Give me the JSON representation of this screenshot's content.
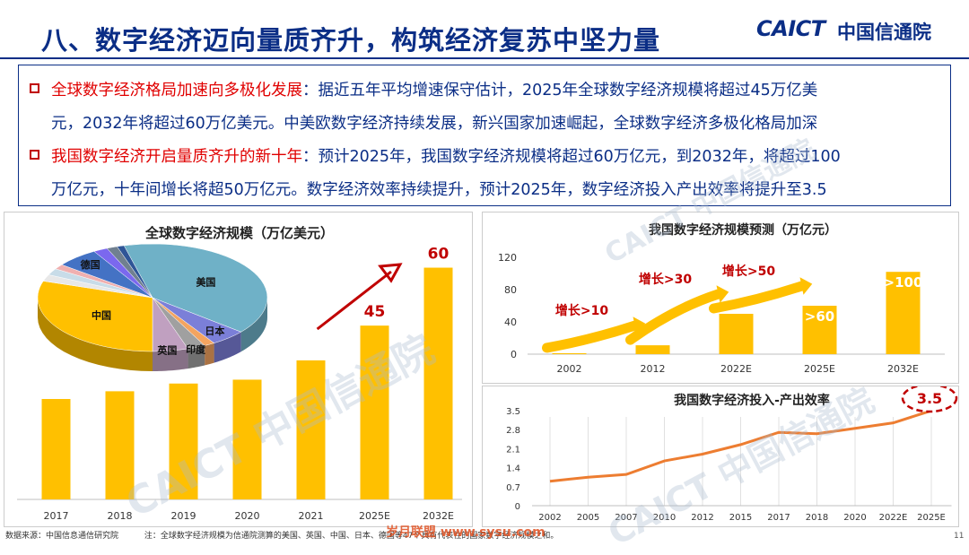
{
  "header": {
    "title": "八、数字经济迈向量质齐升，构筑经济复苏中坚力量",
    "logo_latin": "CAICT",
    "logo_cn": "中国信通院"
  },
  "bullets": [
    {
      "highlight": "全球数字经济格局加速向多极化发展",
      "line1_rest": "：据近五年平均增速保守估计，2025年全球数字经济规模将超过45万亿美",
      "line2": "元，2032年将超过60万亿美元。中美欧数字经济持续发展，新兴国家加速崛起，全球数字经济多极化格局加深"
    },
    {
      "highlight": "我国数字经济开启量质齐升的新十年",
      "line1_rest": "：预计2025年，我国数字经济规模将超过60万亿元，到2032年，将超过100",
      "line2": "万亿元，十年间增长将超50万亿元。数字经济效率持续提升，预计2025年，数字经济投入产出效率将提升至3.5"
    }
  ],
  "footer": {
    "source": "数据来源：中国信息通信研究院",
    "note": "注：全球数字经济规模为信通院测算的美国、英国、中国、日本、德国等47个具有代表性的国家数字经济规模之和。",
    "watermark_text": "岁月联盟 www.sysu.com"
  },
  "watermark": "CAICT 中国信通院",
  "page_number": "11",
  "colors": {
    "navy": "#0b2e86",
    "red": "#e00000",
    "bar": "#ffc000",
    "line": "#ed7d31",
    "callout_red": "#c00000"
  },
  "chart_data": [
    {
      "id": "global",
      "type": "bar",
      "title": "全球数字经济规模（万亿美元）",
      "categories": [
        "2017",
        "2018",
        "2019",
        "2020",
        "2021",
        "2025E",
        "2032E"
      ],
      "values": [
        26,
        28,
        30,
        31,
        36,
        45,
        60
      ],
      "data_labels": [
        null,
        null,
        null,
        null,
        null,
        "45",
        "60"
      ],
      "ylim": [
        0,
        65
      ],
      "grid": false,
      "annotation": "trend arrow from 2021 to 2025E",
      "inset_pie": {
        "type": "pie",
        "slices": [
          {
            "label": "美国",
            "value": 40,
            "color": "#6fb1c7"
          },
          {
            "label": "日本",
            "value": 5,
            "color": "#7b7fd8"
          },
          {
            "label": "",
            "value": 1.5,
            "color": "#f4a460"
          },
          {
            "label": "印度",
            "value": 2.5,
            "color": "#a0a0a0"
          },
          {
            "label": "英国",
            "value": 5,
            "color": "#c0a0c0"
          },
          {
            "label": "中国",
            "value": 30,
            "color": "#ffc000"
          },
          {
            "label": "",
            "value": 2,
            "color": "#e8e8e8"
          },
          {
            "label": "",
            "value": 2,
            "color": "#c8dce8"
          },
          {
            "label": "",
            "value": 1.5,
            "color": "#f0b0b0"
          },
          {
            "label": "德国",
            "value": 6,
            "color": "#4472c4"
          },
          {
            "label": "",
            "value": 2,
            "color": "#7b68ee"
          },
          {
            "label": "",
            "value": 1.5,
            "color": "#708090"
          },
          {
            "label": "",
            "value": 1,
            "color": "#2f5597"
          }
        ]
      }
    },
    {
      "id": "china-scale",
      "type": "bar",
      "title": "我国数字经济规模预测（万亿元）",
      "categories": [
        "2002",
        "2012",
        "2022E",
        "2025E",
        "2032E"
      ],
      "values": [
        1.2,
        11,
        50,
        60,
        102
      ],
      "data_labels": [
        null,
        null,
        null,
        ">60",
        ">100"
      ],
      "yticks": [
        0,
        40,
        80,
        120
      ],
      "ylim": [
        0,
        120
      ],
      "grid": false,
      "annotations": [
        "增长>10",
        "增长>30",
        "增长>50"
      ]
    },
    {
      "id": "china-efficiency",
      "type": "line",
      "title": "我国数字经济投入-产出效率",
      "x": [
        "2002",
        "2005",
        "2007",
        "2010",
        "2012",
        "2015",
        "2017",
        "2018",
        "2020",
        "2022E",
        "2025E"
      ],
      "values": [
        0.9,
        1.05,
        1.15,
        1.65,
        1.9,
        2.25,
        2.7,
        2.65,
        2.85,
        3.05,
        3.5
      ],
      "yticks": [
        0,
        0.7,
        1.4,
        2.1,
        2.8,
        3.5
      ],
      "ylim": [
        0,
        3.6
      ],
      "grid": "vertical",
      "callout": "3.5"
    }
  ]
}
